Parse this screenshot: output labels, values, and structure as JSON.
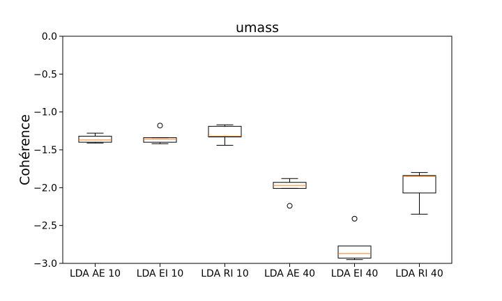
{
  "chart_data": {
    "type": "box",
    "title": "umass",
    "xlabel": "",
    "ylabel": "Cohérence",
    "ylim": [
      -3.0,
      0.0
    ],
    "yticks": [
      "0.0",
      "−0.5",
      "−1.0",
      "−1.5",
      "−2.0",
      "−2.5",
      "−3.0"
    ],
    "ytick_values": [
      0.0,
      -0.5,
      -1.0,
      -1.5,
      -2.0,
      -2.5,
      -3.0
    ],
    "grid": false,
    "colors": {
      "box": "#000000",
      "median": "#ff7f0e",
      "flier": "#000000"
    },
    "categories": [
      "LDA AE 10",
      "LDA EI 10",
      "LDA RI 10",
      "LDA AE 40",
      "LDA EI 40",
      "LDA RI 40"
    ],
    "boxes": [
      {
        "whisker_low": -1.41,
        "q1": -1.4,
        "median": -1.37,
        "q3": -1.32,
        "whisker_high": -1.28,
        "fliers": []
      },
      {
        "whisker_low": -1.42,
        "q1": -1.4,
        "median": -1.36,
        "q3": -1.34,
        "whisker_high": -1.34,
        "fliers": [
          -1.18
        ]
      },
      {
        "whisker_low": -1.44,
        "q1": -1.33,
        "median": -1.32,
        "q3": -1.19,
        "whisker_high": -1.17,
        "fliers": []
      },
      {
        "whisker_low": -2.01,
        "q1": -2.01,
        "median": -1.97,
        "q3": -1.93,
        "whisker_high": -1.88,
        "fliers": [
          -2.24
        ]
      },
      {
        "whisker_low": -2.95,
        "q1": -2.93,
        "median": -2.87,
        "q3": -2.77,
        "whisker_high": -2.77,
        "fliers": [
          -2.41
        ]
      },
      {
        "whisker_low": -2.35,
        "q1": -2.07,
        "median": -1.85,
        "q3": -1.84,
        "whisker_high": -1.8,
        "fliers": []
      }
    ]
  }
}
